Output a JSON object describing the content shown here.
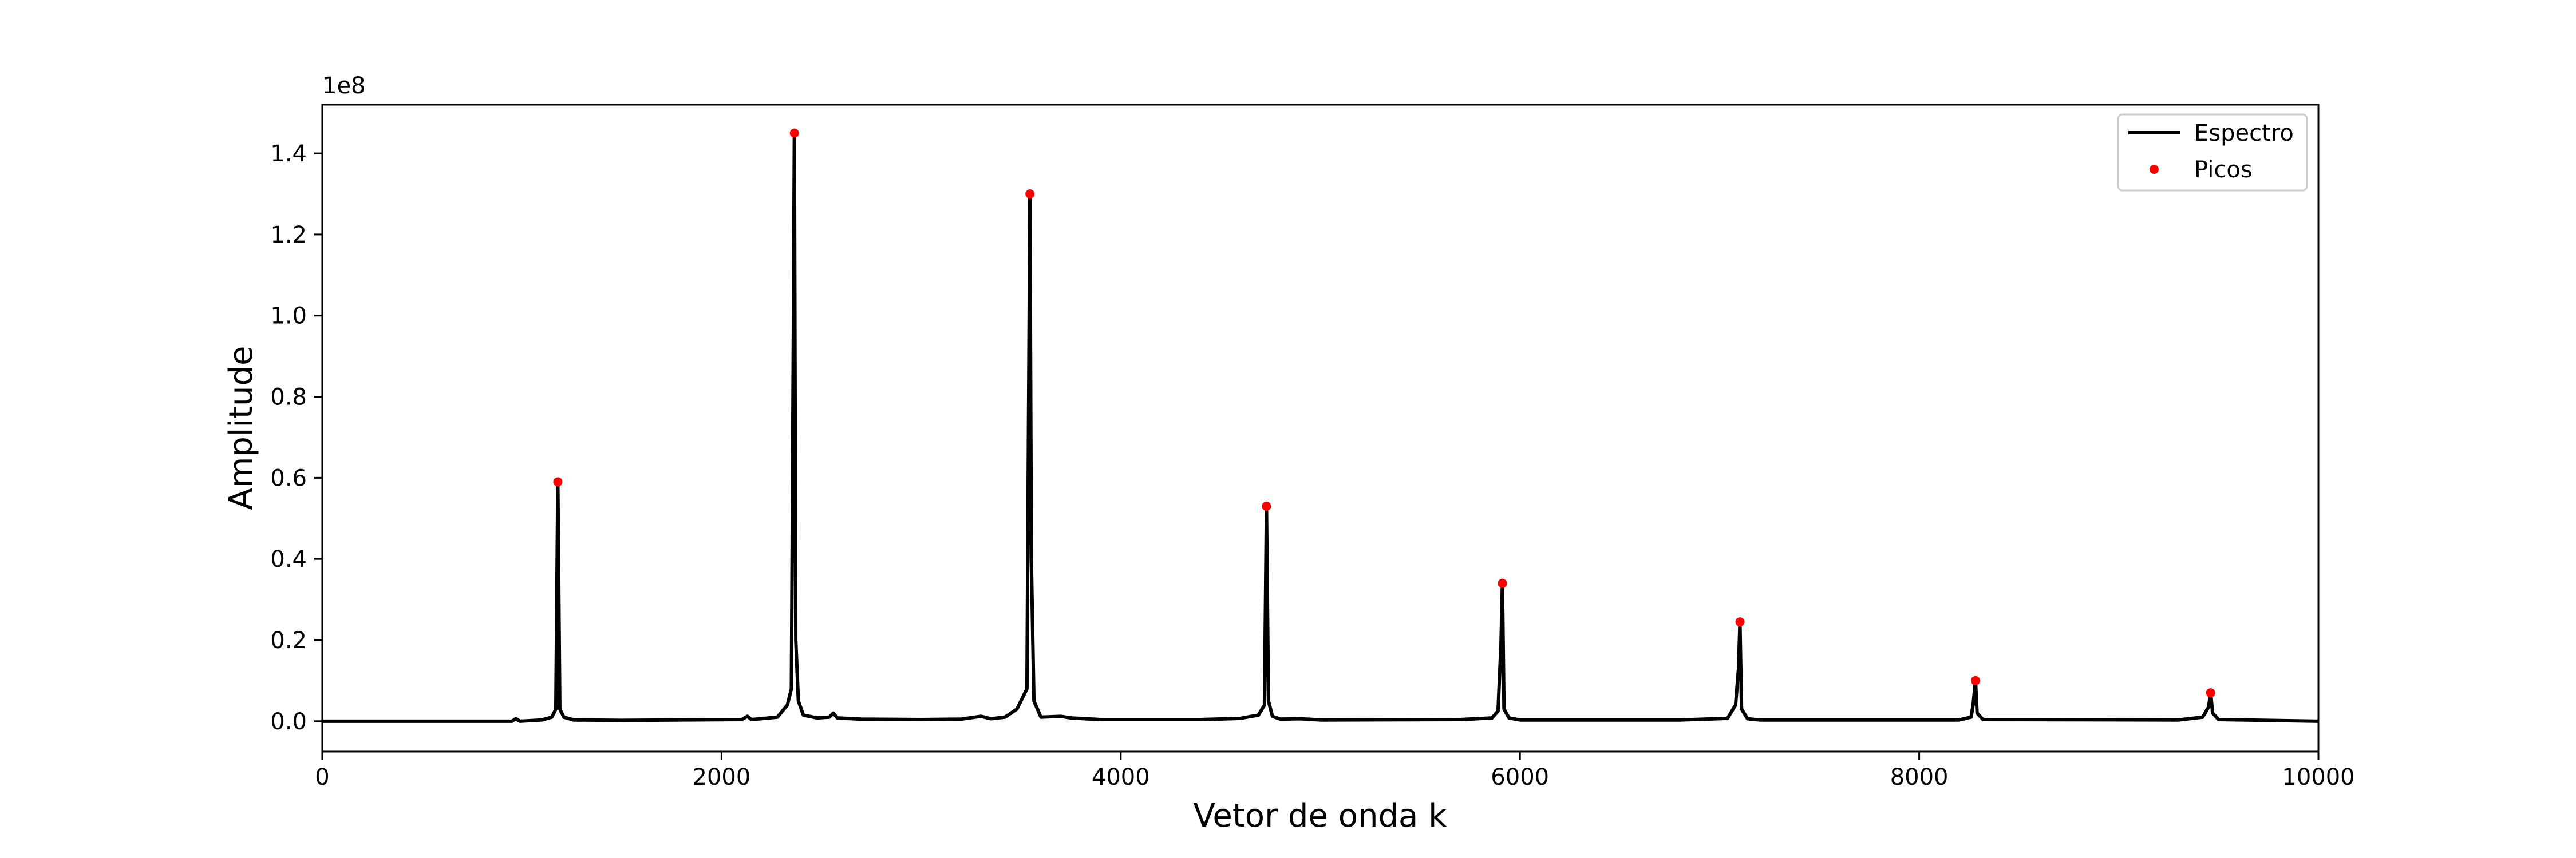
{
  "chart_data": {
    "type": "line",
    "title": "",
    "xlabel": "Vetor de onda k",
    "ylabel": "Amplitude",
    "y_offset_label": "1e8",
    "y_scale_factor": 100000000,
    "xlim": [
      0,
      10000
    ],
    "ylim": [
      -0.075,
      1.52
    ],
    "x_ticks": [
      0,
      2000,
      4000,
      6000,
      8000,
      10000
    ],
    "x_tick_labels": [
      "0",
      "2000",
      "4000",
      "6000",
      "8000",
      "10000"
    ],
    "y_ticks": [
      0.0,
      0.2,
      0.4,
      0.6,
      0.8,
      1.0,
      1.2,
      1.4
    ],
    "y_tick_labels": [
      "0.0",
      "0.2",
      "0.4",
      "0.6",
      "0.8",
      "1.0",
      "1.2",
      "1.4"
    ],
    "grid": false,
    "legend_position": "top-right",
    "series": [
      {
        "name": "Espectro",
        "kind": "line",
        "color": "#000000",
        "points": [
          [
            0,
            0.0
          ],
          [
            950,
            0.0
          ],
          [
            970,
            0.006
          ],
          [
            990,
            0.0
          ],
          [
            1100,
            0.003
          ],
          [
            1150,
            0.01
          ],
          [
            1170,
            0.03
          ],
          [
            1180,
            0.59
          ],
          [
            1190,
            0.03
          ],
          [
            1210,
            0.01
          ],
          [
            1260,
            0.003
          ],
          [
            1500,
            0.002
          ],
          [
            2100,
            0.004
          ],
          [
            2130,
            0.012
          ],
          [
            2150,
            0.004
          ],
          [
            2280,
            0.01
          ],
          [
            2330,
            0.04
          ],
          [
            2350,
            0.08
          ],
          [
            2360,
            0.97
          ],
          [
            2365,
            1.45
          ],
          [
            2372,
            0.2
          ],
          [
            2385,
            0.05
          ],
          [
            2410,
            0.015
          ],
          [
            2480,
            0.008
          ],
          [
            2540,
            0.01
          ],
          [
            2560,
            0.02
          ],
          [
            2580,
            0.008
          ],
          [
            2700,
            0.005
          ],
          [
            3000,
            0.004
          ],
          [
            3200,
            0.005
          ],
          [
            3300,
            0.012
          ],
          [
            3350,
            0.006
          ],
          [
            3420,
            0.01
          ],
          [
            3480,
            0.03
          ],
          [
            3510,
            0.06
          ],
          [
            3530,
            0.08
          ],
          [
            3538,
            0.74
          ],
          [
            3545,
            1.3
          ],
          [
            3552,
            0.4
          ],
          [
            3565,
            0.05
          ],
          [
            3600,
            0.01
          ],
          [
            3700,
            0.012
          ],
          [
            3750,
            0.008
          ],
          [
            3900,
            0.004
          ],
          [
            4400,
            0.004
          ],
          [
            4600,
            0.007
          ],
          [
            4690,
            0.015
          ],
          [
            4720,
            0.04
          ],
          [
            4730,
            0.53
          ],
          [
            4740,
            0.05
          ],
          [
            4760,
            0.012
          ],
          [
            4800,
            0.005
          ],
          [
            4900,
            0.006
          ],
          [
            5000,
            0.003
          ],
          [
            5700,
            0.004
          ],
          [
            5860,
            0.008
          ],
          [
            5890,
            0.025
          ],
          [
            5905,
            0.19
          ],
          [
            5912,
            0.34
          ],
          [
            5920,
            0.03
          ],
          [
            5945,
            0.008
          ],
          [
            6000,
            0.003
          ],
          [
            6800,
            0.003
          ],
          [
            7040,
            0.007
          ],
          [
            7080,
            0.04
          ],
          [
            7095,
            0.13
          ],
          [
            7102,
            0.245
          ],
          [
            7110,
            0.03
          ],
          [
            7140,
            0.006
          ],
          [
            7200,
            0.003
          ],
          [
            8200,
            0.003
          ],
          [
            8260,
            0.01
          ],
          [
            8270,
            0.04
          ],
          [
            8282,
            0.1
          ],
          [
            8290,
            0.02
          ],
          [
            8320,
            0.004
          ],
          [
            9300,
            0.003
          ],
          [
            9420,
            0.01
          ],
          [
            9450,
            0.035
          ],
          [
            9460,
            0.07
          ],
          [
            9470,
            0.02
          ],
          [
            9500,
            0.004
          ],
          [
            10000,
            0.0
          ]
        ]
      },
      {
        "name": "Picos",
        "kind": "markers",
        "color": "#ff0000",
        "points": [
          [
            1180,
            0.59
          ],
          [
            2365,
            1.45
          ],
          [
            3545,
            1.3
          ],
          [
            4730,
            0.53
          ],
          [
            5912,
            0.34
          ],
          [
            7102,
            0.245
          ],
          [
            8282,
            0.1
          ],
          [
            9460,
            0.07
          ]
        ]
      }
    ]
  }
}
